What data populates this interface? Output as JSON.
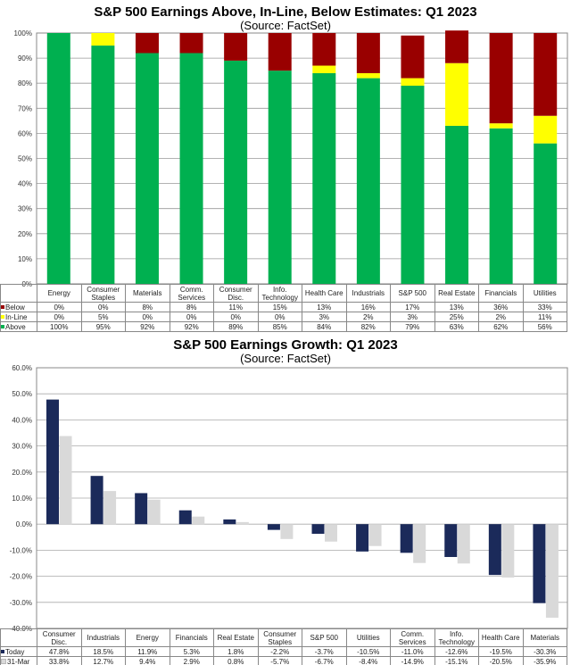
{
  "chart_data": [
    {
      "type": "bar",
      "stacked": true,
      "title": "S&P 500 Earnings Above, In-Line, Below Estimates: Q1 2023",
      "subtitle": "(Source: FactSet)",
      "categories": [
        "Energy",
        "Consumer Staples",
        "Materials",
        "Comm. Services",
        "Consumer Disc.",
        "Info. Technology",
        "Health Care",
        "Industrials",
        "S&P 500",
        "Real Estate",
        "Financials",
        "Utilities"
      ],
      "series": [
        {
          "name": "Below",
          "color": "#990000",
          "values": [
            0,
            0,
            8,
            8,
            11,
            15,
            13,
            16,
            17,
            13,
            36,
            33
          ],
          "labels": [
            "0%",
            "0%",
            "8%",
            "8%",
            "11%",
            "15%",
            "13%",
            "16%",
            "17%",
            "13%",
            "36%",
            "33%"
          ]
        },
        {
          "name": "In-Line",
          "color": "#ffff00",
          "values": [
            0,
            5,
            0,
            0,
            0,
            0,
            3,
            2,
            3,
            25,
            2,
            11
          ],
          "labels": [
            "0%",
            "5%",
            "0%",
            "0%",
            "0%",
            "0%",
            "3%",
            "2%",
            "3%",
            "25%",
            "2%",
            "11%"
          ]
        },
        {
          "name": "Above",
          "color": "#00b050",
          "values": [
            100,
            95,
            92,
            92,
            89,
            85,
            84,
            82,
            79,
            63,
            62,
            56
          ],
          "labels": [
            "100%",
            "95%",
            "92%",
            "92%",
            "89%",
            "85%",
            "84%",
            "82%",
            "79%",
            "63%",
            "62%",
            "56%"
          ]
        }
      ],
      "ylim": [
        0,
        100
      ],
      "yticks": [
        "0%",
        "10%",
        "20%",
        "30%",
        "40%",
        "50%",
        "60%",
        "70%",
        "80%",
        "90%",
        "100%"
      ],
      "grid": true,
      "legend": "data-table"
    },
    {
      "type": "bar",
      "title": "S&P 500 Earnings Growth: Q1 2023",
      "subtitle": "(Source: FactSet)",
      "categories": [
        "Consumer Disc.",
        "Industrials",
        "Energy",
        "Financials",
        "Real Estate",
        "Consumer Staples",
        "S&P 500",
        "Utilities",
        "Comm. Services",
        "Info. Technology",
        "Health Care",
        "Materials"
      ],
      "series": [
        {
          "name": "Today",
          "color": "#1b2a5a",
          "values": [
            47.8,
            18.5,
            11.9,
            5.3,
            1.8,
            -2.2,
            -3.7,
            -10.5,
            -11.0,
            -12.6,
            -19.5,
            -30.3
          ],
          "labels": [
            "47.8%",
            "18.5%",
            "11.9%",
            "5.3%",
            "1.8%",
            "-2.2%",
            "-3.7%",
            "-10.5%",
            "-11.0%",
            "-12.6%",
            "-19.5%",
            "-30.3%"
          ]
        },
        {
          "name": "31-Mar",
          "color": "#d9d9d9",
          "values": [
            33.8,
            12.7,
            9.4,
            2.9,
            0.8,
            -5.7,
            -6.7,
            -8.4,
            -14.9,
            -15.1,
            -20.5,
            -35.9
          ],
          "labels": [
            "33.8%",
            "12.7%",
            "9.4%",
            "2.9%",
            "0.8%",
            "-5.7%",
            "-6.7%",
            "-8.4%",
            "-14.9%",
            "-15.1%",
            "-20.5%",
            "-35.9%"
          ]
        }
      ],
      "ylim": [
        -40,
        60
      ],
      "yticks": [
        "-40.0%",
        "-30.0%",
        "-20.0%",
        "-10.0%",
        "0.0%",
        "10.0%",
        "20.0%",
        "30.0%",
        "40.0%",
        "50.0%",
        "60.0%"
      ],
      "grid": true,
      "legend": "data-table"
    }
  ]
}
